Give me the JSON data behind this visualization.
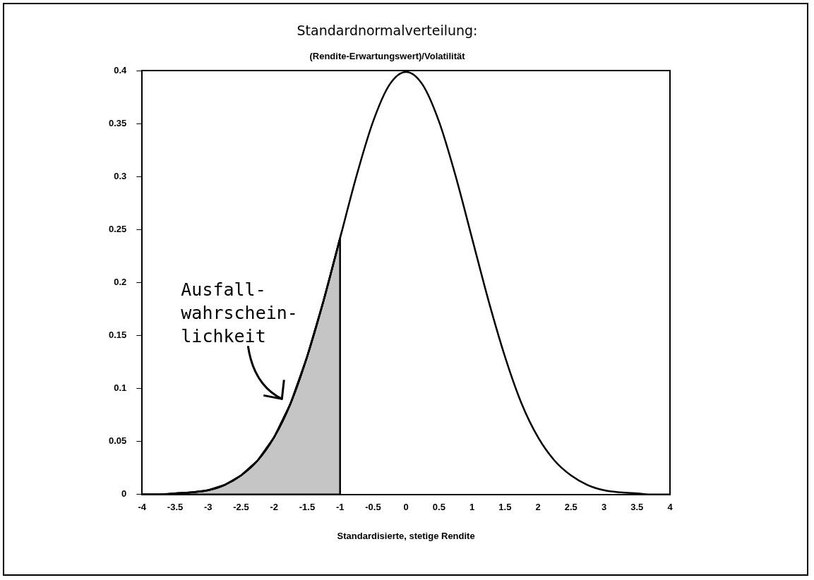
{
  "chart_data": {
    "type": "line",
    "title": "Standardnormalverteilung:",
    "subtitle": "(Rendite-Erwartungswert)/Volatilität",
    "xlabel": "Standardisierte, stetige Rendite",
    "xlim": [
      -4,
      4
    ],
    "xticks": [
      -4,
      -3.5,
      -3,
      -2.5,
      -2,
      -1.5,
      -1,
      -0.5,
      0,
      0.5,
      1,
      1.5,
      2,
      2.5,
      3,
      3.5,
      4
    ],
    "ylim": [
      0,
      0.4
    ],
    "yticks": [
      0,
      0.05,
      0.1,
      0.15,
      0.2,
      0.25,
      0.3,
      0.35,
      0.4
    ],
    "grid": false,
    "legend": false,
    "marker": "none",
    "line_style": "solid",
    "annotations": [
      "Ausfall-\nwahrschein-\nlichkeit"
    ],
    "series": [
      {
        "type": "line",
        "color": "#000000",
        "x": [
          -4,
          -3.75,
          -3.5,
          -3.25,
          -3,
          -2.75,
          -2.5,
          -2.25,
          -2,
          -1.75,
          -1.5,
          -1.25,
          -1,
          -0.75,
          -0.5,
          -0.25,
          0,
          0.25,
          0.5,
          0.75,
          1,
          1.25,
          1.5,
          1.75,
          2,
          2.25,
          2.5,
          2.75,
          3,
          3.25,
          3.5,
          3.75,
          4
        ],
        "values": [
          0,
          0,
          0.001,
          0.002,
          0.004,
          0.009,
          0.018,
          0.032,
          0.054,
          0.086,
          0.13,
          0.183,
          0.242,
          0.301,
          0.352,
          0.387,
          0.399,
          0.387,
          0.352,
          0.301,
          0.242,
          0.183,
          0.13,
          0.086,
          0.054,
          0.032,
          0.018,
          0.009,
          0.004,
          0.002,
          0.001,
          0,
          0
        ]
      },
      {
        "type": "area",
        "color": "#000000",
        "x": [
          -4,
          -3.75,
          -3.5,
          -3.25,
          -3,
          -2.75,
          -2.5,
          -2.25,
          -2,
          -1.75,
          -1.5,
          -1.25,
          -1
        ],
        "values": [
          0,
          0,
          0.001,
          0.002,
          0.004,
          0.009,
          0.018,
          0.032,
          0.054,
          0.086,
          0.13,
          0.183,
          0.242
        ]
      }
    ]
  }
}
